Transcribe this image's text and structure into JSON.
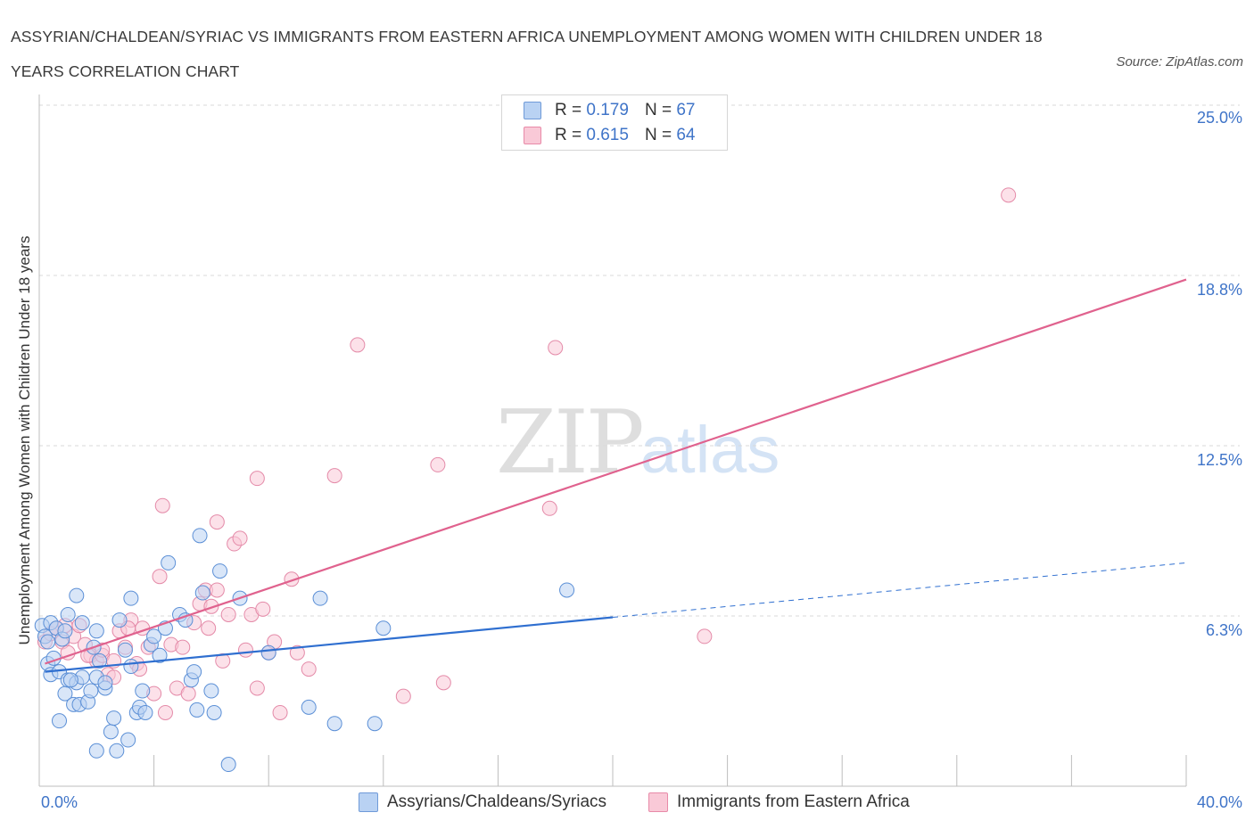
{
  "title": "ASSYRIAN/CHALDEAN/SYRIAC VS IMMIGRANTS FROM EASTERN AFRICA UNEMPLOYMENT AMONG WOMEN WITH CHILDREN UNDER 18 YEARS CORRELATION CHART",
  "source": "Source: ZipAtlas.com",
  "watermark": {
    "zip": "ZIP",
    "atlas": "atlas"
  },
  "legend": {
    "rows": [
      {
        "r_label": "R =",
        "r_value": "0.179",
        "n_label": "N =",
        "n_value": "67"
      },
      {
        "r_label": "R =",
        "r_value": "0.615",
        "n_label": "N =",
        "n_value": "64"
      }
    ]
  },
  "colors": {
    "blue_fill": "#b9d2f3",
    "blue_stroke": "#5b8fd6",
    "blue_line": "#2f6fd0",
    "pink_fill": "#f9c9d7",
    "pink_stroke": "#e48aa8",
    "pink_line": "#e0628e",
    "grid": "#d9d9d9",
    "axis_text": "#3f74c8"
  },
  "chart_data": {
    "type": "scatter",
    "title": "ASSYRIAN/CHALDEAN/SYRIAC VS IMMIGRANTS FROM EASTERN AFRICA UNEMPLOYMENT AMONG WOMEN WITH CHILDREN UNDER 18 YEARS CORRELATION CHART",
    "xlabel": "",
    "ylabel": "Unemployment Among Women with Children Under 18 years",
    "xlim": [
      0,
      40
    ],
    "ylim": [
      0,
      25
    ],
    "x_tick_labels": [
      "0.0%",
      "40.0%"
    ],
    "y_tick_labels": [
      "6.3%",
      "12.5%",
      "18.8%",
      "25.0%"
    ],
    "y_ticks": [
      6.25,
      12.5,
      18.75,
      25.0
    ],
    "grid": "horizontal dashed",
    "legend_position": "top-center",
    "series": [
      {
        "name": "Assyrians/Chaldeans/Syriacs",
        "color": "#5b8fd6",
        "trend": {
          "x": [
            0.2,
            20.0
          ],
          "y": [
            4.2,
            6.2
          ],
          "dashed_extension": {
            "x": [
              20.0,
              40.0
            ],
            "y": [
              6.2,
              8.2
            ]
          }
        },
        "points": [
          [
            0.1,
            5.9
          ],
          [
            0.2,
            5.5
          ],
          [
            0.3,
            4.5
          ],
          [
            0.3,
            5.3
          ],
          [
            0.4,
            6.0
          ],
          [
            0.4,
            4.1
          ],
          [
            0.5,
            4.7
          ],
          [
            0.6,
            5.8
          ],
          [
            0.7,
            4.2
          ],
          [
            0.8,
            5.4
          ],
          [
            0.9,
            3.4
          ],
          [
            0.9,
            5.7
          ],
          [
            1.0,
            3.9
          ],
          [
            1.0,
            6.3
          ],
          [
            1.2,
            3.0
          ],
          [
            1.3,
            3.8
          ],
          [
            1.4,
            3.0
          ],
          [
            1.5,
            4.0
          ],
          [
            1.5,
            6.0
          ],
          [
            1.7,
            3.1
          ],
          [
            1.8,
            3.5
          ],
          [
            1.9,
            5.1
          ],
          [
            2.0,
            5.7
          ],
          [
            2.0,
            4.0
          ],
          [
            2.1,
            4.6
          ],
          [
            2.3,
            3.6
          ],
          [
            2.3,
            3.8
          ],
          [
            2.5,
            2.0
          ],
          [
            2.6,
            2.5
          ],
          [
            2.7,
            1.3
          ],
          [
            2.8,
            6.1
          ],
          [
            3.0,
            5.0
          ],
          [
            3.1,
            1.7
          ],
          [
            3.2,
            4.4
          ],
          [
            3.4,
            2.7
          ],
          [
            3.5,
            2.9
          ],
          [
            3.6,
            3.5
          ],
          [
            3.7,
            2.7
          ],
          [
            3.9,
            5.2
          ],
          [
            4.0,
            5.5
          ],
          [
            4.2,
            4.8
          ],
          [
            4.4,
            5.8
          ],
          [
            4.5,
            8.2
          ],
          [
            4.9,
            6.3
          ],
          [
            5.1,
            6.1
          ],
          [
            5.3,
            3.9
          ],
          [
            5.4,
            4.2
          ],
          [
            5.6,
            9.2
          ],
          [
            5.7,
            7.1
          ],
          [
            6.0,
            3.5
          ],
          [
            6.1,
            2.7
          ],
          [
            6.3,
            7.9
          ],
          [
            6.6,
            0.8
          ],
          [
            7.0,
            6.9
          ],
          [
            8.0,
            4.9
          ],
          [
            9.4,
            2.9
          ],
          [
            9.8,
            6.9
          ],
          [
            10.3,
            2.3
          ],
          [
            12.0,
            5.8
          ],
          [
            18.4,
            7.2
          ],
          [
            1.1,
            3.9
          ],
          [
            2.0,
            1.3
          ],
          [
            0.7,
            2.4
          ],
          [
            1.3,
            7.0
          ],
          [
            3.2,
            6.9
          ],
          [
            5.5,
            2.8
          ],
          [
            11.7,
            2.3
          ]
        ]
      },
      {
        "name": "Immigrants from Eastern Africa",
        "color": "#e48aa8",
        "trend": {
          "x": [
            0.2,
            40.0
          ],
          "y": [
            4.5,
            18.6
          ]
        },
        "points": [
          [
            0.2,
            5.3
          ],
          [
            0.4,
            5.6
          ],
          [
            0.6,
            5.8
          ],
          [
            0.8,
            5.3
          ],
          [
            1.0,
            4.9
          ],
          [
            1.2,
            5.5
          ],
          [
            1.4,
            5.9
          ],
          [
            1.6,
            5.2
          ],
          [
            1.8,
            4.8
          ],
          [
            2.0,
            4.6
          ],
          [
            2.2,
            4.8
          ],
          [
            2.4,
            4.1
          ],
          [
            2.6,
            4.6
          ],
          [
            2.8,
            5.7
          ],
          [
            3.0,
            5.1
          ],
          [
            3.2,
            6.1
          ],
          [
            3.4,
            4.5
          ],
          [
            3.6,
            5.8
          ],
          [
            3.8,
            5.1
          ],
          [
            4.0,
            3.4
          ],
          [
            4.2,
            7.7
          ],
          [
            4.4,
            2.7
          ],
          [
            4.6,
            5.2
          ],
          [
            4.8,
            3.6
          ],
          [
            5.0,
            5.1
          ],
          [
            5.2,
            3.4
          ],
          [
            5.4,
            6.0
          ],
          [
            5.6,
            6.7
          ],
          [
            5.8,
            7.2
          ],
          [
            6.0,
            6.6
          ],
          [
            6.2,
            9.7
          ],
          [
            6.4,
            4.6
          ],
          [
            6.6,
            6.3
          ],
          [
            6.8,
            8.9
          ],
          [
            7.0,
            9.1
          ],
          [
            7.2,
            5.0
          ],
          [
            7.4,
            6.3
          ],
          [
            7.6,
            3.6
          ],
          [
            7.8,
            6.5
          ],
          [
            8.0,
            4.9
          ],
          [
            8.2,
            5.3
          ],
          [
            8.4,
            2.7
          ],
          [
            8.8,
            7.6
          ],
          [
            9.0,
            4.9
          ],
          [
            9.4,
            4.3
          ],
          [
            10.3,
            11.4
          ],
          [
            11.1,
            16.2
          ],
          [
            12.7,
            3.3
          ],
          [
            13.9,
            11.8
          ],
          [
            14.1,
            3.8
          ],
          [
            17.8,
            10.2
          ],
          [
            18.0,
            16.1
          ],
          [
            23.2,
            5.5
          ],
          [
            33.8,
            21.7
          ],
          [
            4.3,
            10.3
          ],
          [
            7.6,
            11.3
          ],
          [
            6.2,
            7.2
          ],
          [
            3.1,
            5.8
          ],
          [
            2.2,
            5.0
          ],
          [
            1.7,
            4.8
          ],
          [
            0.9,
            5.9
          ],
          [
            2.6,
            4.0
          ],
          [
            5.9,
            5.8
          ],
          [
            3.5,
            4.3
          ]
        ]
      }
    ]
  },
  "bottom_legend": {
    "series1": "Assyrians/Chaldeans/Syriacs",
    "series2": "Immigrants from Eastern Africa"
  },
  "axes": {
    "x_min_label": "0.0%",
    "x_max_label": "40.0%",
    "y_labels": [
      "25.0%",
      "18.8%",
      "12.5%",
      "6.3%"
    ],
    "y_title": "Unemployment Among Women with Children Under 18 years"
  }
}
